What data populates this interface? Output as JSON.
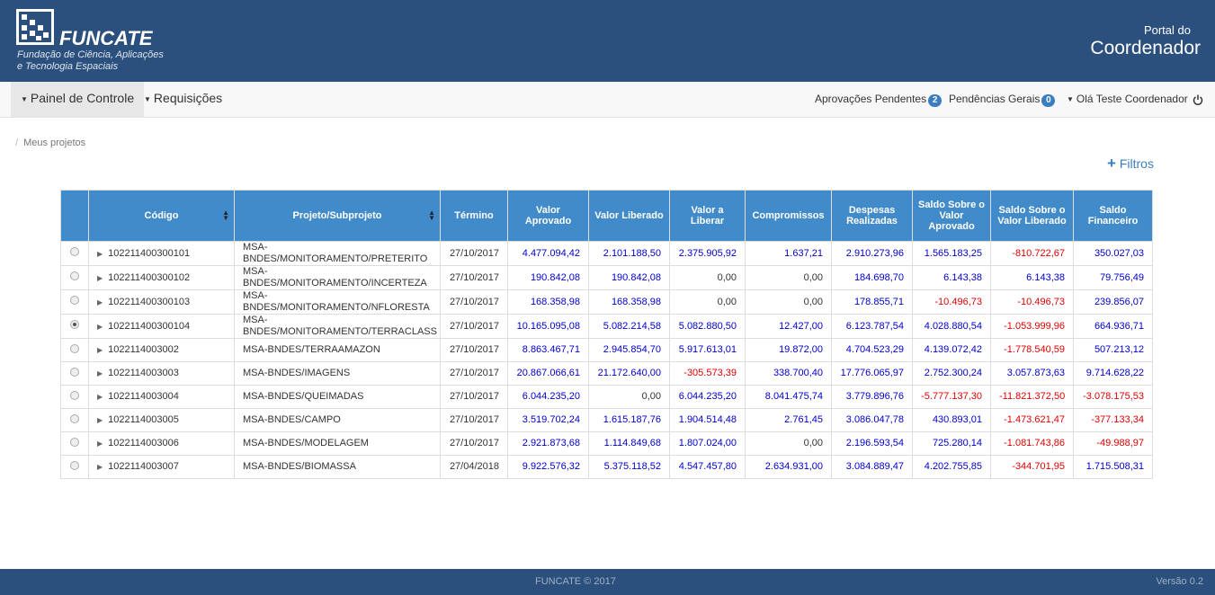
{
  "header": {
    "brand": "FUNCATE",
    "tagline_1": "Fundação de Ciência, Aplicações",
    "tagline_2": "e Tecnologia Espaciais",
    "portal_small": "Portal do",
    "portal_big": "Coordenador"
  },
  "nav": {
    "menu": [
      "Painel de Controle",
      "Requisições"
    ],
    "approvals": "Aprovações Pendentes",
    "approvals_count": 2,
    "pendings": "Pendências Gerais",
    "pendings_count": 0,
    "user": "Olá Teste Coordenador"
  },
  "breadcrumb": "Meus projetos",
  "filters": "Filtros",
  "table": {
    "columns": [
      "Código",
      "Projeto/Subprojeto",
      "Término",
      "Valor Aprovado",
      "Valor Liberado",
      "Valor a Liberar",
      "Compromissos",
      "Despesas Realizadas",
      "Saldo Sobre o Valor Aprovado",
      "Saldo Sobre o Valor Liberado",
      "Saldo Financeiro"
    ],
    "selected_row": 3,
    "rows": [
      [
        "102211400300101",
        "MSA-BNDES/MONITORAMENTO/PRETERITO",
        "27/10/2017",
        "4.477.094,42",
        "2.101.188,50",
        "2.375.905,92",
        "1.637,21",
        "2.910.273,96",
        "1.565.183,25",
        "-810.722,67",
        "350.027,03"
      ],
      [
        "102211400300102",
        "MSA-BNDES/MONITORAMENTO/INCERTEZA",
        "27/10/2017",
        "190.842,08",
        "190.842,08",
        "0,00",
        "0,00",
        "184.698,70",
        "6.143,38",
        "6.143,38",
        "79.756,49"
      ],
      [
        "102211400300103",
        "MSA-BNDES/MONITORAMENTO/NFLORESTA",
        "27/10/2017",
        "168.358,98",
        "168.358,98",
        "0,00",
        "0,00",
        "178.855,71",
        "-10.496,73",
        "-10.496,73",
        "239.856,07"
      ],
      [
        "102211400300104",
        "MSA-BNDES/MONITORAMENTO/TERRACLASS",
        "27/10/2017",
        "10.165.095,08",
        "5.082.214,58",
        "5.082.880,50",
        "12.427,00",
        "6.123.787,54",
        "4.028.880,54",
        "-1.053.999,96",
        "664.936,71"
      ],
      [
        "1022114003002",
        "MSA-BNDES/TERRAAMAZON",
        "27/10/2017",
        "8.863.467,71",
        "2.945.854,70",
        "5.917.613,01",
        "19.872,00",
        "4.704.523,29",
        "4.139.072,42",
        "-1.778.540,59",
        "507.213,12"
      ],
      [
        "1022114003003",
        "MSA-BNDES/IMAGENS",
        "27/10/2017",
        "20.867.066,61",
        "21.172.640,00",
        "-305.573,39",
        "338.700,40",
        "17.776.065,97",
        "2.752.300,24",
        "3.057.873,63",
        "9.714.628,22"
      ],
      [
        "1022114003004",
        "MSA-BNDES/QUEIMADAS",
        "27/10/2017",
        "6.044.235,20",
        "0,00",
        "6.044.235,20",
        "8.041.475,74",
        "3.779.896,76",
        "-5.777.137,30",
        "-11.821.372,50",
        "-3.078.175,53"
      ],
      [
        "1022114003005",
        "MSA-BNDES/CAMPO",
        "27/10/2017",
        "3.519.702,24",
        "1.615.187,76",
        "1.904.514,48",
        "2.761,45",
        "3.086.047,78",
        "430.893,01",
        "-1.473.621,47",
        "-377.133,34"
      ],
      [
        "1022114003006",
        "MSA-BNDES/MODELAGEM",
        "27/10/2017",
        "2.921.873,68",
        "1.114.849,68",
        "1.807.024,00",
        "0,00",
        "2.196.593,54",
        "725.280,14",
        "-1.081.743,86",
        "-49.988,97"
      ],
      [
        "1022114003007",
        "MSA-BNDES/BIOMASSA",
        "27/04/2018",
        "9.922.576,32",
        "5.375.118,52",
        "4.547.457,80",
        "2.634.931,00",
        "3.084.889,47",
        "4.202.755,85",
        "-344.701,95",
        "1.715.508,31"
      ]
    ]
  },
  "footer": {
    "copyright": "FUNCATE © 2017",
    "version": "Versão 0.2"
  }
}
